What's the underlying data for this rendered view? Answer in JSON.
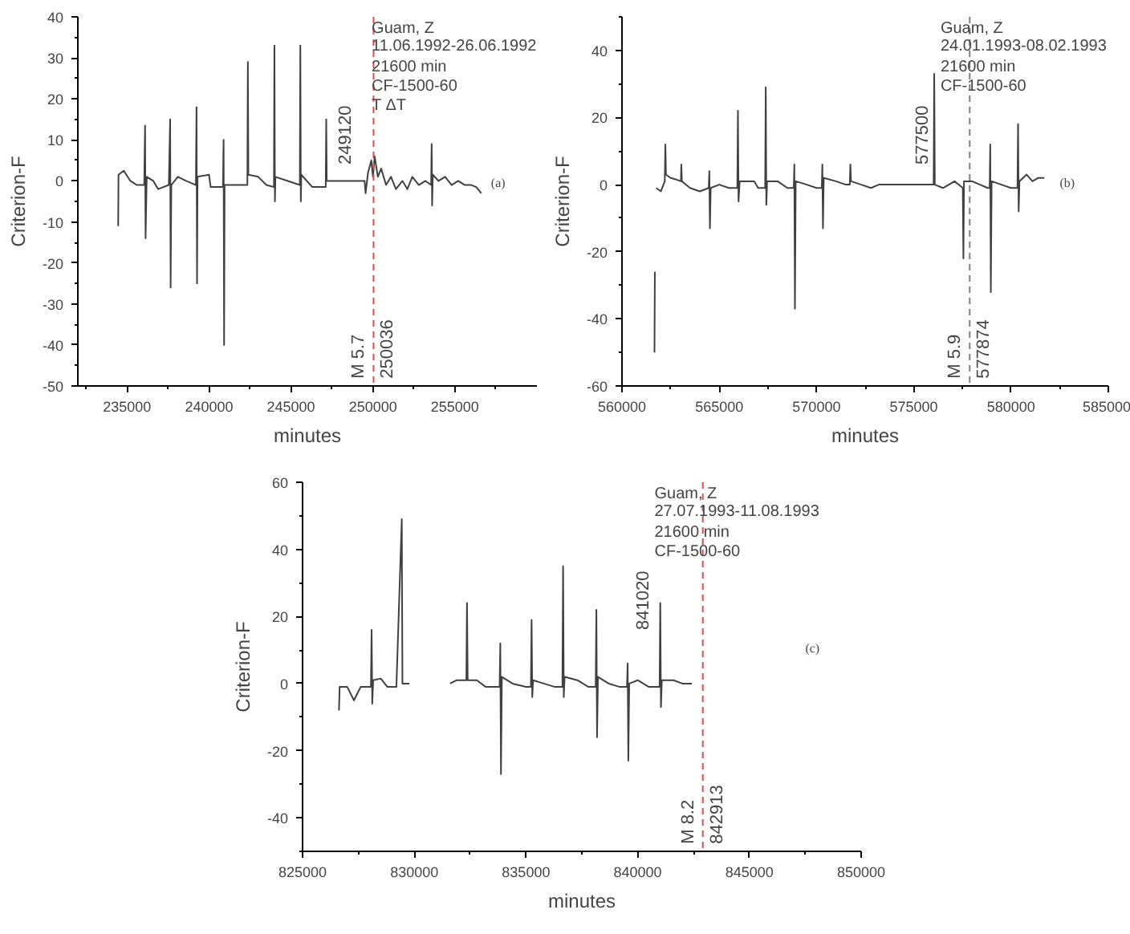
{
  "chart_data": [
    {
      "type": "line",
      "title": "Guam, Z",
      "subtitle": "11.06.1992-26.06.1992",
      "xlabel": "minutes",
      "ylabel": "Criterion-F",
      "annotations": [
        "21600 min",
        "CF-1500-60",
        "T ΔT",
        "(a)",
        "249120",
        "250036"
      ],
      "x": [
        234460,
        234480,
        234800,
        235200,
        235600,
        236050,
        236100,
        236130,
        236200,
        236600,
        236900,
        237550,
        237630,
        237660,
        237700,
        238100,
        238600,
        239200,
        239240,
        239270,
        239300,
        240000,
        240100,
        240850,
        240890,
        240920,
        240950,
        241500,
        242340,
        242370,
        242400,
        243000,
        243500,
        243960,
        243990,
        244020,
        244050,
        244800,
        245540,
        245570,
        245600,
        245630,
        246300,
        247120,
        247150,
        247180,
        249490,
        249550,
        249700,
        249900,
        250000,
        250100,
        250300,
        250500,
        250800,
        251100,
        251400,
        251800,
        252100,
        252400,
        252800,
        253200,
        253550,
        253580,
        253610,
        253650,
        254000,
        254400,
        254800,
        255200,
        255600,
        256000,
        256300,
        256610
      ],
      "series": [
        {
          "color": "#404040",
          "values": [
            -11,
            1.5,
            2.5,
            0,
            -1,
            -1,
            13.5,
            -14,
            1,
            0,
            -2,
            -1,
            15,
            -26,
            -1,
            1,
            0,
            -1,
            18,
            -25,
            1,
            1.5,
            -1.5,
            -1.5,
            10,
            -40,
            -1,
            -1,
            -1,
            29,
            1.5,
            1,
            -1,
            -1.5,
            33,
            -5,
            1,
            0,
            -1,
            33,
            -5,
            1.5,
            -1.5,
            -1.5,
            15,
            0,
            0,
            -3,
            2,
            5,
            1,
            6,
            1,
            3,
            -1,
            1,
            -2,
            0,
            -2,
            1,
            -1,
            0,
            -1,
            9,
            -6,
            1.5,
            0,
            1,
            -1,
            0,
            -1,
            -1,
            -1.5,
            -3
          ]
        }
      ],
      "xlim": [
        232000,
        260000
      ],
      "xticks": [
        235000,
        240000,
        245000,
        250000,
        255000
      ],
      "ylim": [
        -50,
        40
      ],
      "yticks": [
        -50,
        -40,
        -30,
        -20,
        -10,
        0,
        10,
        20,
        30,
        40
      ],
      "ref_lines": [
        {
          "axis": "x",
          "value": 250036,
          "label": "M 5.7",
          "color": "#d05050",
          "line_style": "dashed"
        }
      ]
    },
    {
      "type": "line",
      "title": "Guam, Z",
      "subtitle": "24.01.1993-08.02.1993",
      "xlabel": "minutes",
      "ylabel": "Criterion-F",
      "annotations": [
        "21600 min",
        "CF-1500-60",
        "(b)",
        "577500",
        "577874"
      ],
      "x": [
        561670,
        561690,
        561720,
        561760,
        562000,
        562200,
        562230,
        562260,
        562500,
        562800,
        563030,
        563050,
        563080,
        563500,
        564000,
        564460,
        564490,
        564520,
        564560,
        565000,
        565500,
        565930,
        565960,
        565990,
        566050,
        566800,
        567000,
        567360,
        567390,
        567420,
        567460,
        568000,
        568500,
        568830,
        568860,
        568890,
        568930,
        569500,
        570000,
        570270,
        570300,
        570330,
        570370,
        571000,
        571500,
        571710,
        571740,
        571770,
        572300,
        572800,
        573200,
        575950,
        576020,
        576050,
        576080,
        576500,
        577100,
        577520,
        577550,
        577580,
        578000,
        578400,
        578800,
        578900,
        578930,
        578960,
        579000,
        579500,
        580000,
        580330,
        580360,
        580390,
        580430,
        580800,
        581100,
        581400,
        581710
      ],
      "series": [
        {
          "color": "#404040",
          "values": [
            -50,
            -26,
            null,
            -1,
            -2,
            1,
            12,
            3,
            2,
            1.5,
            1,
            6,
            1,
            -1,
            -2,
            -1,
            4,
            -13,
            -1,
            0,
            -1,
            -1,
            22,
            -5,
            1,
            1,
            -1,
            -1,
            29,
            -6,
            1,
            1,
            -1,
            -1,
            6,
            -37,
            1,
            0,
            -1,
            -1,
            6,
            -13,
            2,
            1,
            0,
            0,
            6,
            1,
            0,
            -1,
            0,
            0,
            0,
            33,
            0,
            -1,
            1,
            -1,
            -22,
            1,
            1,
            0,
            -1,
            -1,
            12,
            -32,
            1,
            0,
            -1,
            -1,
            18,
            -8,
            1,
            3,
            1,
            2,
            2
          ]
        }
      ],
      "xlim": [
        560000,
        585000
      ],
      "xticks": [
        560000,
        565000,
        570000,
        575000,
        580000,
        585000
      ],
      "ylim": [
        -60,
        50
      ],
      "yticks": [
        -60,
        -40,
        -20,
        0,
        20,
        40
      ],
      "ref_lines": [
        {
          "axis": "x",
          "value": 577874,
          "label": "M 5.9",
          "color": "#808080",
          "line_style": "dashed"
        }
      ]
    },
    {
      "type": "line",
      "title": "Guam, Z",
      "subtitle": "27.07.1993-11.08.1993",
      "xlabel": "minutes",
      "ylabel": "Criterion-F",
      "annotations": [
        "21600 min",
        "CF-1500-60",
        "(c)",
        "841020",
        "842913"
      ],
      "x": [
        826630,
        826660,
        827000,
        827300,
        827600,
        828060,
        828090,
        828120,
        828160,
        828500,
        828800,
        829200,
        829440,
        829470,
        829780,
        830700,
        831600,
        831900,
        832330,
        832360,
        832390,
        832800,
        833200,
        833820,
        833850,
        833880,
        833920,
        834400,
        835000,
        835220,
        835250,
        835280,
        835320,
        835800,
        836300,
        836630,
        836660,
        836690,
        836730,
        837300,
        837800,
        838120,
        838150,
        838180,
        838220,
        838700,
        839200,
        839520,
        839550,
        839580,
        839620,
        840000,
        840500,
        840980,
        841010,
        841040,
        841080,
        841600,
        842000,
        842420
      ],
      "series": [
        {
          "color": "#404040",
          "values": [
            -8,
            -1,
            -1,
            -5,
            -1,
            -1,
            16,
            -6,
            1,
            1.5,
            -1,
            -1,
            49,
            0,
            0,
            null,
            0,
            1,
            1,
            24,
            1,
            1,
            -1,
            -1,
            12,
            -27,
            2,
            0,
            -1,
            -1,
            19,
            -4,
            1,
            0,
            -1,
            -1,
            35,
            -4,
            2,
            1,
            -1,
            -1,
            22,
            -16,
            2,
            0,
            -1,
            -1,
            6,
            -23,
            0,
            1,
            -1,
            -1,
            24,
            -7,
            1,
            1,
            0,
            0
          ]
        }
      ],
      "xlim": [
        825000,
        850000
      ],
      "xticks": [
        825000,
        830000,
        835000,
        840000,
        845000,
        850000
      ],
      "ylim": [
        -50,
        60
      ],
      "yticks": [
        -40,
        -20,
        0,
        20,
        40,
        60
      ],
      "ref_lines": [
        {
          "axis": "x",
          "value": 842913,
          "label": "M 8.2",
          "color": "#d05050",
          "line_style": "dashed"
        }
      ]
    }
  ]
}
